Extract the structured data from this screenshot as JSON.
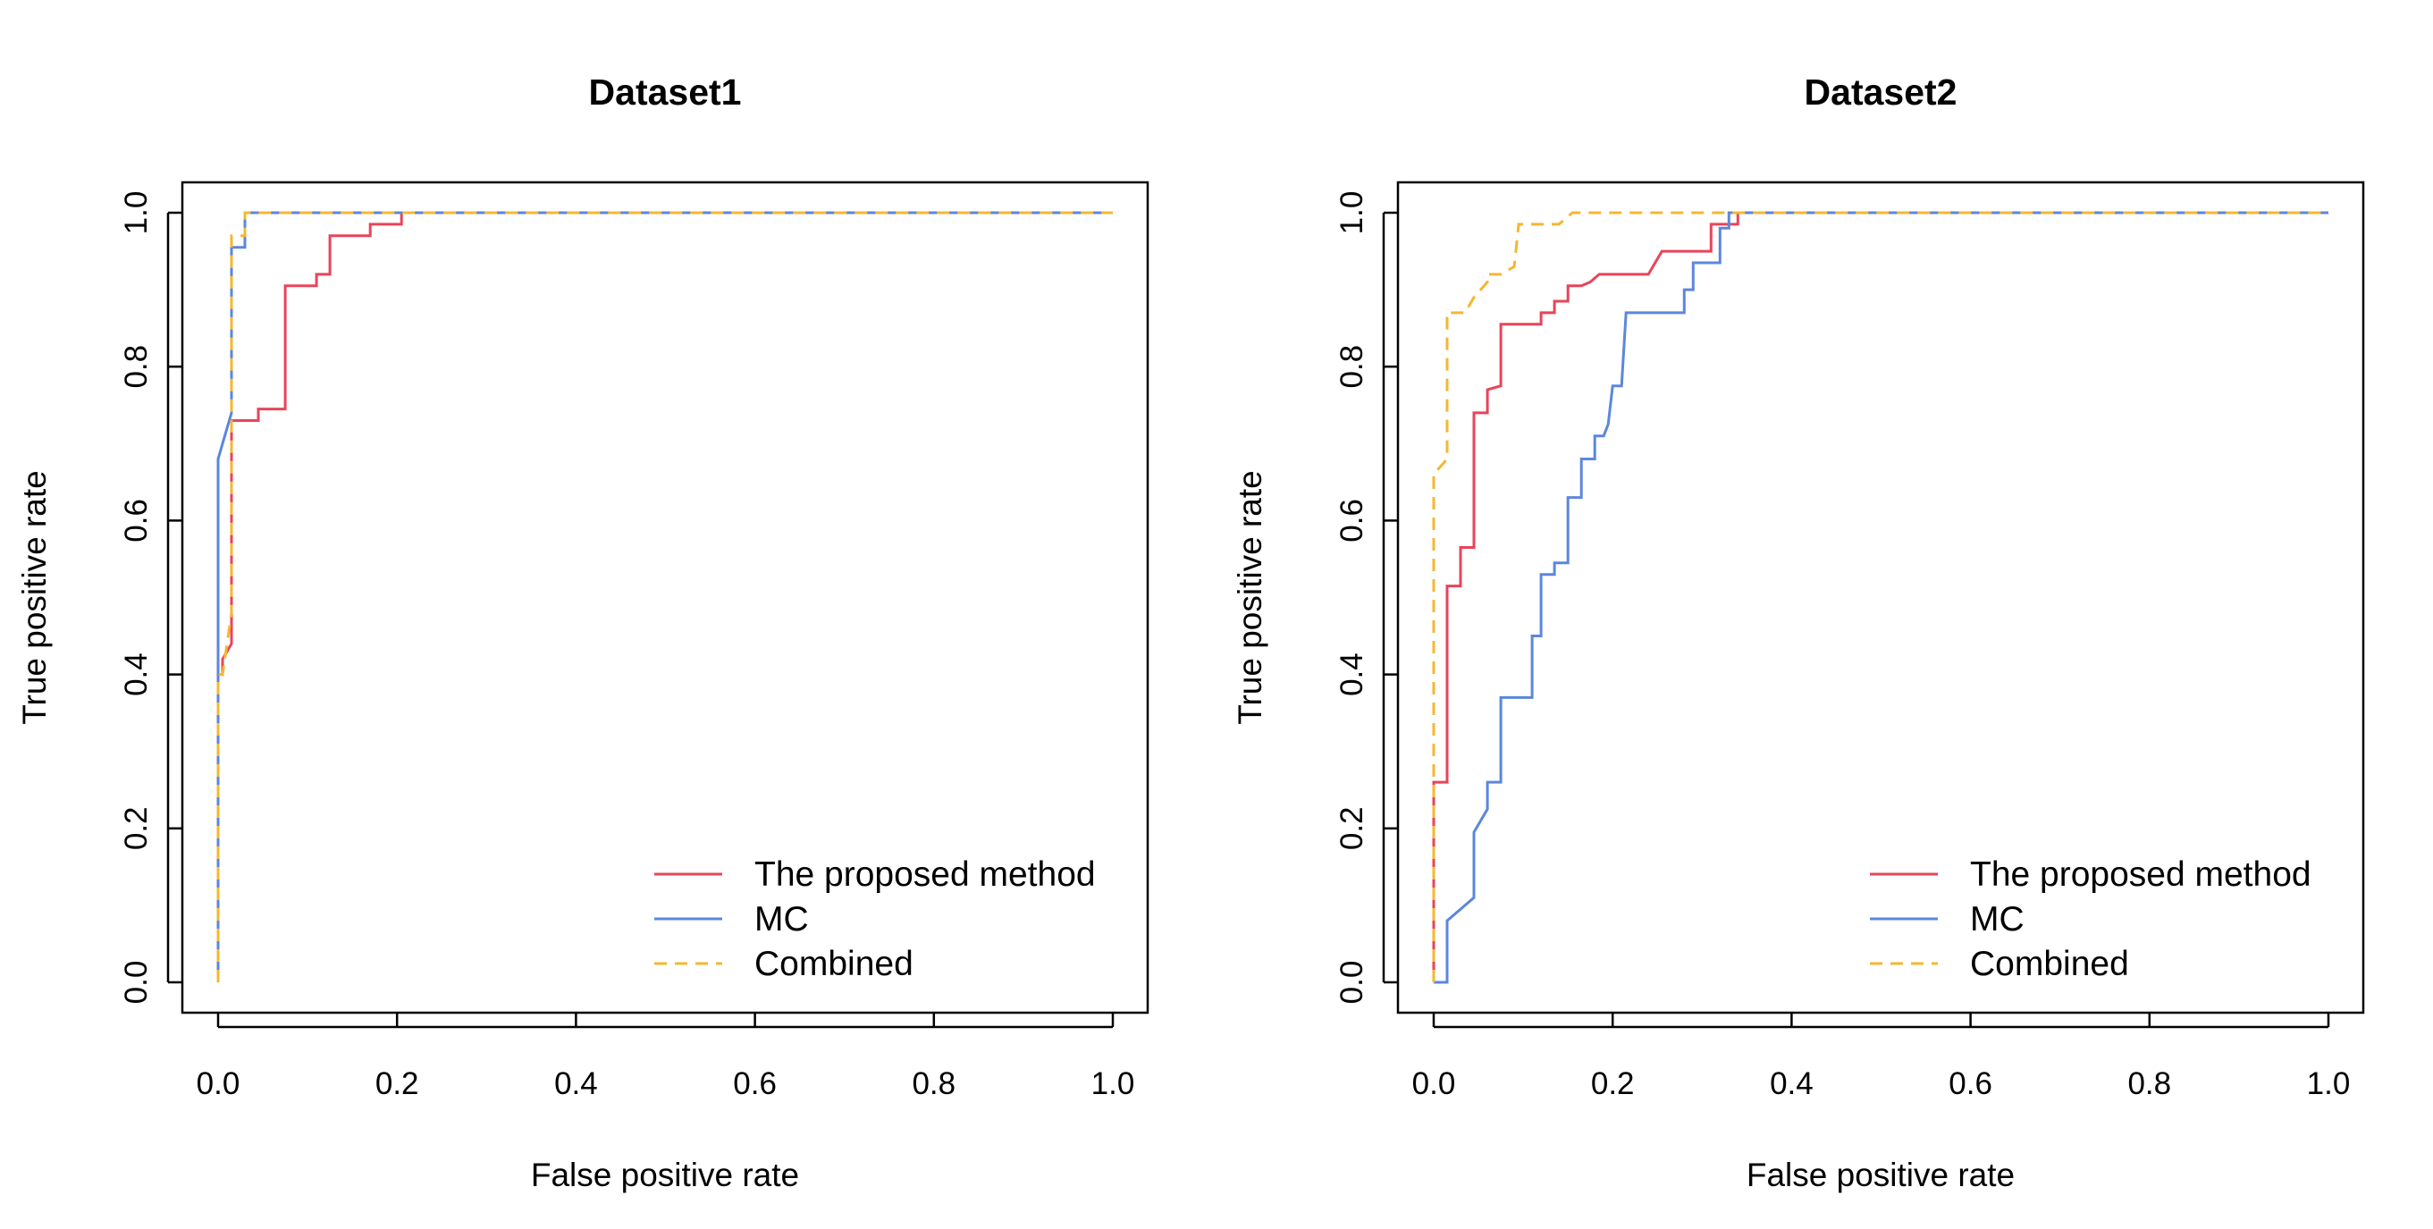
{
  "chart_data": [
    {
      "type": "line",
      "title": "Dataset1",
      "xlabel": "False positive rate",
      "ylabel": "True positive rate",
      "xlim": [
        0,
        1
      ],
      "ylim": [
        0,
        1
      ],
      "xticks": [
        "0.0",
        "0.2",
        "0.4",
        "0.6",
        "0.8",
        "1.0"
      ],
      "yticks": [
        "0.0",
        "0.2",
        "0.4",
        "0.6",
        "0.8",
        "1.0"
      ],
      "grid": false,
      "legend_position": "bottom-right",
      "series": [
        {
          "name": "The proposed method",
          "color": "#e8445a",
          "dash": "solid",
          "points": [
            [
              0,
              0
            ],
            [
              0,
              0.4
            ],
            [
              0.005,
              0.4
            ],
            [
              0.005,
              0.42
            ],
            [
              0.015,
              0.44
            ],
            [
              0.015,
              0.73
            ],
            [
              0.045,
              0.73
            ],
            [
              0.045,
              0.745
            ],
            [
              0.075,
              0.745
            ],
            [
              0.075,
              0.905
            ],
            [
              0.11,
              0.905
            ],
            [
              0.11,
              0.92
            ],
            [
              0.125,
              0.92
            ],
            [
              0.125,
              0.97
            ],
            [
              0.17,
              0.97
            ],
            [
              0.17,
              0.985
            ],
            [
              0.205,
              0.985
            ],
            [
              0.205,
              1.0
            ],
            [
              1.0,
              1.0
            ]
          ]
        },
        {
          "name": "MC",
          "color": "#5b87dc",
          "dash": "solid",
          "points": [
            [
              0,
              0
            ],
            [
              0,
              0.68
            ],
            [
              0.015,
              0.74
            ],
            [
              0.015,
              0.955
            ],
            [
              0.03,
              0.955
            ],
            [
              0.03,
              1.0
            ],
            [
              1.0,
              1.0
            ]
          ]
        },
        {
          "name": "Combined",
          "color": "#f5b731",
          "dash": "dashed",
          "points": [
            [
              0,
              0
            ],
            [
              0,
              0.4
            ],
            [
              0.005,
              0.4
            ],
            [
              0.015,
              0.48
            ],
            [
              0.015,
              0.97
            ],
            [
              0.03,
              0.97
            ],
            [
              0.03,
              1.0
            ],
            [
              1.0,
              1.0
            ]
          ]
        }
      ]
    },
    {
      "type": "line",
      "title": "Dataset2",
      "xlabel": "False positive rate",
      "ylabel": "True positive rate",
      "xlim": [
        0,
        1
      ],
      "ylim": [
        0,
        1
      ],
      "xticks": [
        "0.0",
        "0.2",
        "0.4",
        "0.6",
        "0.8",
        "1.0"
      ],
      "yticks": [
        "0.0",
        "0.2",
        "0.4",
        "0.6",
        "0.8",
        "1.0"
      ],
      "grid": false,
      "legend_position": "bottom-right",
      "series": [
        {
          "name": "The proposed method",
          "color": "#e8445a",
          "dash": "solid",
          "points": [
            [
              0,
              0
            ],
            [
              0,
              0.26
            ],
            [
              0.015,
              0.26
            ],
            [
              0.015,
              0.515
            ],
            [
              0.03,
              0.515
            ],
            [
              0.03,
              0.565
            ],
            [
              0.045,
              0.565
            ],
            [
              0.045,
              0.74
            ],
            [
              0.06,
              0.74
            ],
            [
              0.06,
              0.77
            ],
            [
              0.075,
              0.775
            ],
            [
              0.075,
              0.855
            ],
            [
              0.12,
              0.855
            ],
            [
              0.12,
              0.87
            ],
            [
              0.135,
              0.87
            ],
            [
              0.135,
              0.885
            ],
            [
              0.15,
              0.885
            ],
            [
              0.15,
              0.905
            ],
            [
              0.165,
              0.905
            ],
            [
              0.175,
              0.91
            ],
            [
              0.185,
              0.92
            ],
            [
              0.24,
              0.92
            ],
            [
              0.255,
              0.95
            ],
            [
              0.31,
              0.95
            ],
            [
              0.31,
              0.985
            ],
            [
              0.34,
              0.985
            ],
            [
              0.34,
              1.0
            ],
            [
              1.0,
              1.0
            ]
          ]
        },
        {
          "name": "MC",
          "color": "#5b87dc",
          "dash": "solid",
          "points": [
            [
              0,
              0
            ],
            [
              0.015,
              0
            ],
            [
              0.015,
              0.08
            ],
            [
              0.045,
              0.11
            ],
            [
              0.045,
              0.195
            ],
            [
              0.06,
              0.225
            ],
            [
              0.06,
              0.26
            ],
            [
              0.075,
              0.26
            ],
            [
              0.075,
              0.37
            ],
            [
              0.11,
              0.37
            ],
            [
              0.11,
              0.45
            ],
            [
              0.12,
              0.45
            ],
            [
              0.12,
              0.53
            ],
            [
              0.135,
              0.53
            ],
            [
              0.135,
              0.545
            ],
            [
              0.15,
              0.545
            ],
            [
              0.15,
              0.63
            ],
            [
              0.165,
              0.63
            ],
            [
              0.165,
              0.68
            ],
            [
              0.18,
              0.68
            ],
            [
              0.18,
              0.71
            ],
            [
              0.19,
              0.71
            ],
            [
              0.195,
              0.725
            ],
            [
              0.2,
              0.775
            ],
            [
              0.21,
              0.775
            ],
            [
              0.215,
              0.87
            ],
            [
              0.28,
              0.87
            ],
            [
              0.28,
              0.9
            ],
            [
              0.29,
              0.9
            ],
            [
              0.29,
              0.935
            ],
            [
              0.32,
              0.935
            ],
            [
              0.32,
              0.98
            ],
            [
              0.33,
              0.98
            ],
            [
              0.33,
              1.0
            ],
            [
              1.0,
              1.0
            ]
          ]
        },
        {
          "name": "Combined",
          "color": "#f5b731",
          "dash": "dashed",
          "points": [
            [
              0,
              0
            ],
            [
              0,
              0.66
            ],
            [
              0.015,
              0.68
            ],
            [
              0.015,
              0.87
            ],
            [
              0.035,
              0.87
            ],
            [
              0.045,
              0.89
            ],
            [
              0.06,
              0.91
            ],
            [
              0.06,
              0.92
            ],
            [
              0.075,
              0.92
            ],
            [
              0.09,
              0.93
            ],
            [
              0.095,
              0.985
            ],
            [
              0.14,
              0.985
            ],
            [
              0.155,
              1.0
            ],
            [
              1.0,
              1.0
            ]
          ]
        }
      ]
    }
  ]
}
